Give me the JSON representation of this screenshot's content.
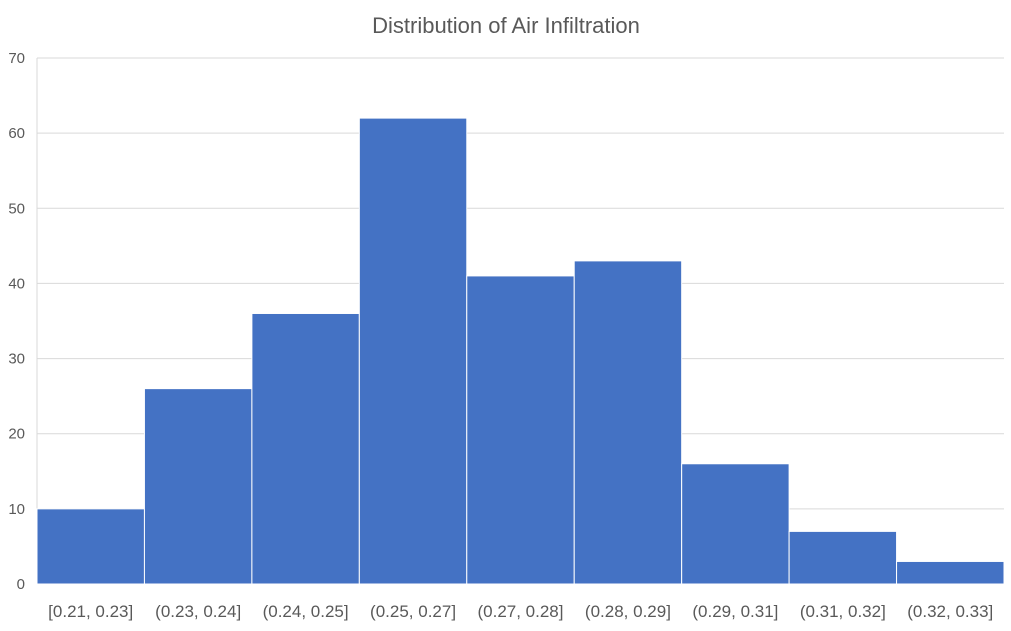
{
  "chart_data": {
    "type": "bar",
    "title": "Distribution of Air Infiltration",
    "xlabel": "",
    "ylabel": "",
    "categories": [
      "[0.21, 0.23]",
      "(0.23, 0.24]",
      "(0.24, 0.25]",
      "(0.25, 0.27]",
      "(0.27, 0.28]",
      "(0.28, 0.29]",
      "(0.29, 0.31]",
      "(0.31, 0.32]",
      "(0.32, 0.33]"
    ],
    "values": [
      10,
      26,
      36,
      62,
      41,
      43,
      16,
      7,
      3
    ],
    "ylim": [
      0,
      70
    ],
    "yticks": [
      0,
      10,
      20,
      30,
      40,
      50,
      60,
      70
    ],
    "grid": true,
    "legend": "none",
    "bar_color": "#4472C4",
    "grid_color": "#D9D9D9",
    "text_color": "#595959"
  }
}
